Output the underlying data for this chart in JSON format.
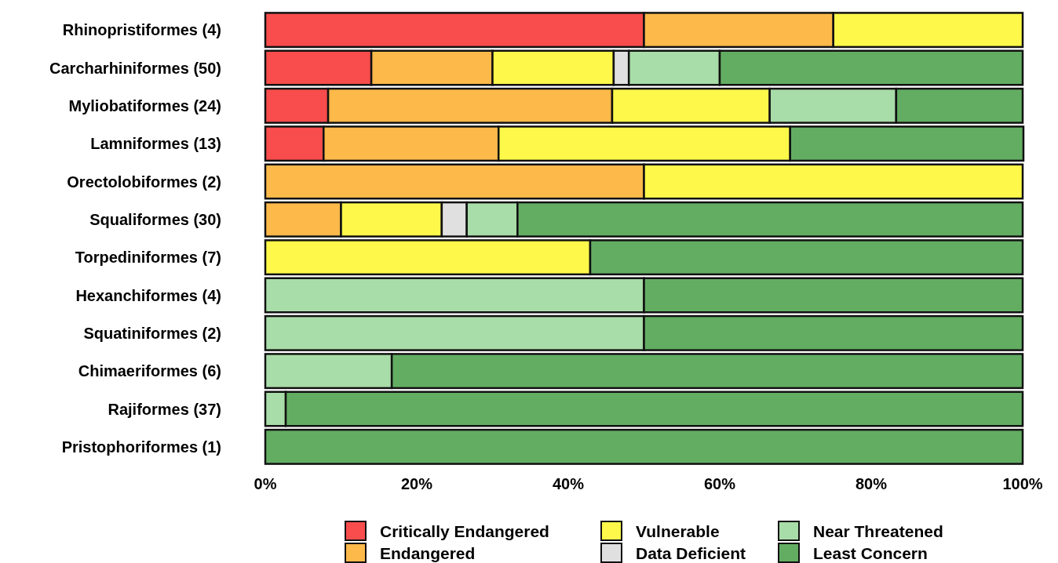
{
  "chart_data": {
    "type": "bar",
    "orientation": "horizontal",
    "stacked": true,
    "categories": [
      "Rhinopristiformes (4)",
      "Carcharhiniformes (50)",
      "Myliobatiformes (24)",
      "Lamniformes (13)",
      "Orectolobiformes (2)",
      "Squaliformes (30)",
      "Torpediniformes (7)",
      "Hexanchiformes (4)",
      "Squatiniformes (2)",
      "Chimaeriformes (6)",
      "Rajiformes (37)",
      "Pristophoriformes (1)"
    ],
    "series": [
      {
        "name": "Critically Endangered",
        "color": "#f94c4c",
        "values": [
          50,
          14,
          8.3,
          7.7,
          0,
          0,
          0,
          0,
          0,
          0,
          0,
          0
        ]
      },
      {
        "name": "Endangered",
        "color": "#fdb94a",
        "values": [
          25,
          16,
          37.5,
          23.1,
          50,
          10,
          0,
          0,
          0,
          0,
          0,
          0
        ]
      },
      {
        "name": "Vulnerable",
        "color": "#fdf84a",
        "values": [
          25,
          16,
          20.8,
          38.5,
          50,
          13.3,
          42.9,
          0,
          0,
          0,
          0,
          0
        ]
      },
      {
        "name": "Data Deficient",
        "color": "#e0e0e0",
        "values": [
          0,
          2,
          0,
          0,
          0,
          3.3,
          0,
          0,
          0,
          0,
          0,
          0
        ]
      },
      {
        "name": "Near Threatened",
        "color": "#a8dca8",
        "values": [
          0,
          12,
          16.7,
          0,
          0,
          6.7,
          0,
          50,
          50,
          16.7,
          2.7,
          0
        ]
      },
      {
        "name": "Least Concern",
        "color": "#63ad63",
        "values": [
          0,
          40,
          16.7,
          30.8,
          0,
          66.7,
          57.1,
          50,
          50,
          83.3,
          97.3,
          100
        ]
      }
    ],
    "xlim": [
      0,
      100
    ],
    "xticks": [
      {
        "value": 0,
        "label": "0%"
      },
      {
        "value": 20,
        "label": "20%"
      },
      {
        "value": 40,
        "label": "40%"
      },
      {
        "value": 60,
        "label": "60%"
      },
      {
        "value": 80,
        "label": "80%"
      },
      {
        "value": 100,
        "label": "100%"
      }
    ],
    "grid": false,
    "legend": "bottom"
  }
}
